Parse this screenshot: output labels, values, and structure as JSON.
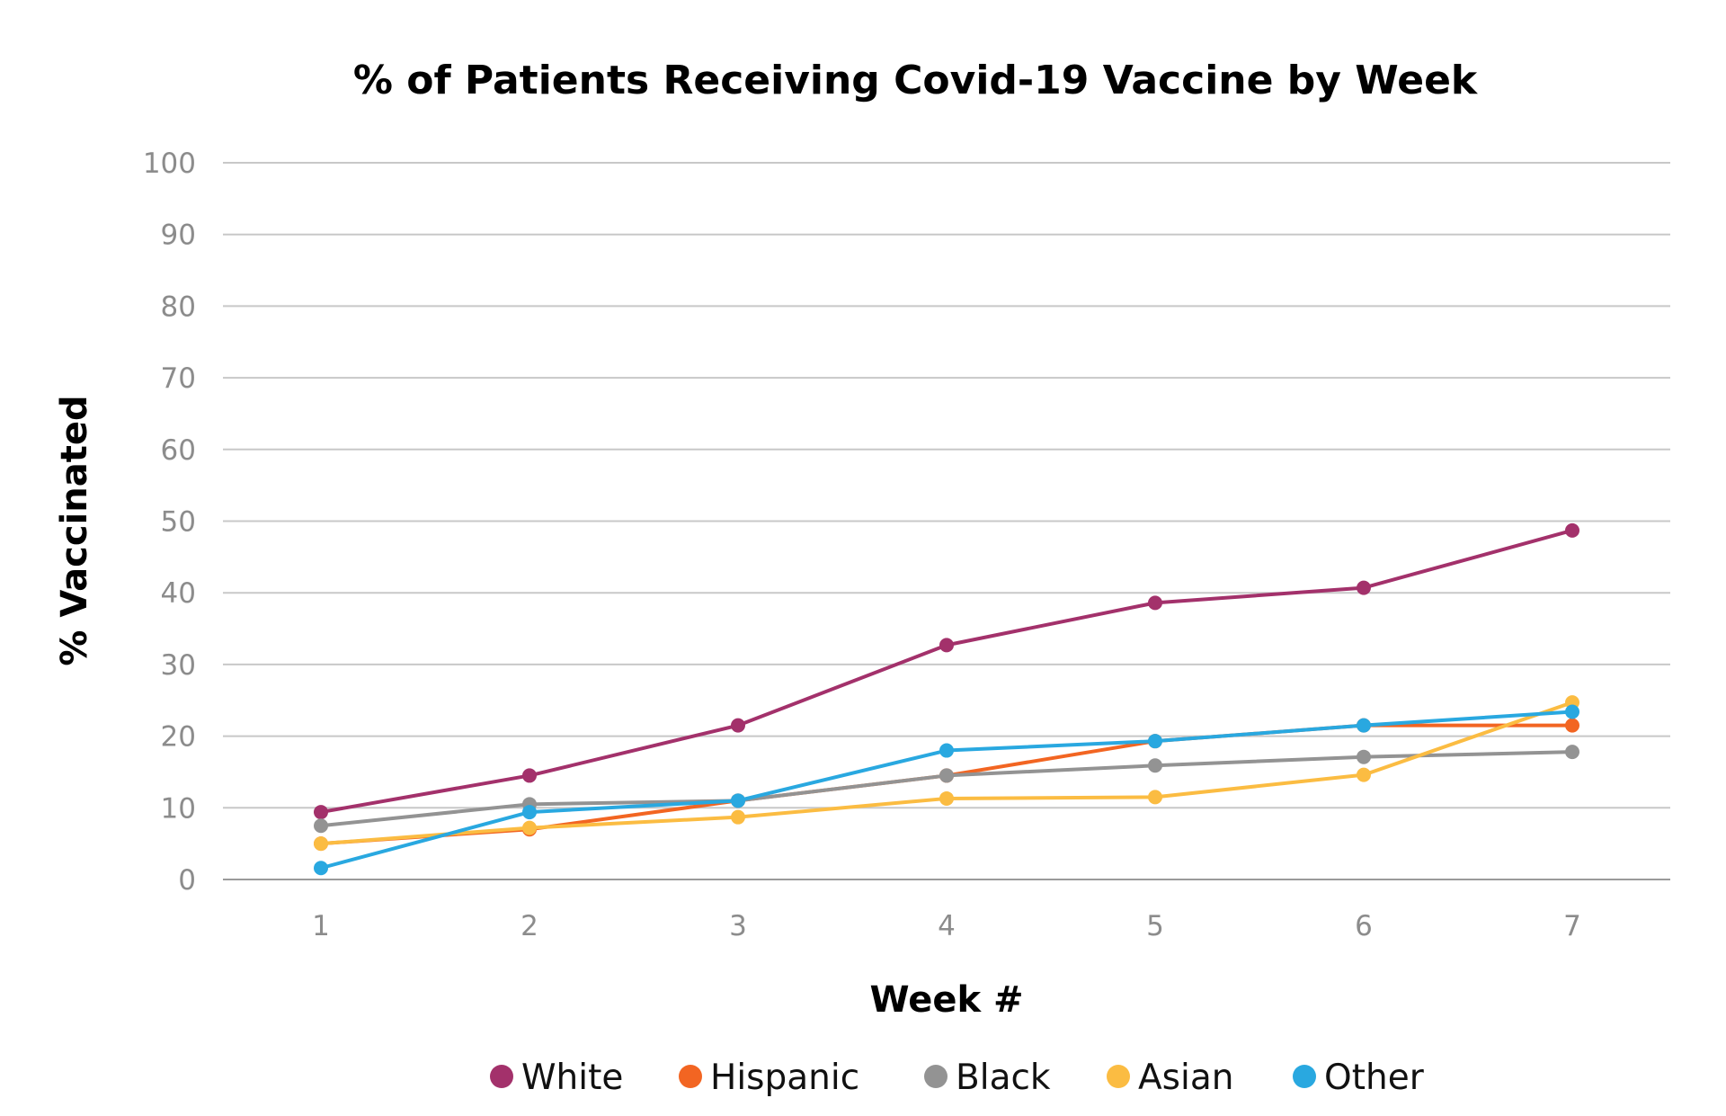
{
  "chart_data": {
    "type": "line",
    "title": "% of Patients Receiving Covid-19 Vaccine by Week",
    "xlabel": "Week #",
    "ylabel": "% Vaccinated",
    "categories": [
      "1",
      "2",
      "3",
      "4",
      "5",
      "6",
      "7"
    ],
    "ylim": [
      0,
      100
    ],
    "yticks": [
      "0",
      "10",
      "20",
      "30",
      "40",
      "50",
      "60",
      "70",
      "80",
      "90",
      "100"
    ],
    "grid": "horizontal",
    "legend_position": "bottom",
    "series": [
      {
        "name": "White",
        "color": "#a3316b",
        "values": [
          9.4,
          14.5,
          21.5,
          32.7,
          38.6,
          40.7,
          48.7
        ]
      },
      {
        "name": "Hispanic",
        "color": "#f26522",
        "values": [
          5.0,
          7.0,
          11.0,
          14.5,
          19.3,
          21.5,
          21.5
        ]
      },
      {
        "name": "Black",
        "color": "#939393",
        "values": [
          7.5,
          10.5,
          11.0,
          14.5,
          15.9,
          17.1,
          17.8
        ]
      },
      {
        "name": "Asian",
        "color": "#fbbc42",
        "values": [
          5.0,
          7.2,
          8.7,
          11.3,
          11.5,
          14.6,
          24.7
        ]
      },
      {
        "name": "Other",
        "color": "#29a8e0",
        "values": [
          1.6,
          9.4,
          11.0,
          18.0,
          19.3,
          21.5,
          23.4
        ]
      }
    ]
  }
}
